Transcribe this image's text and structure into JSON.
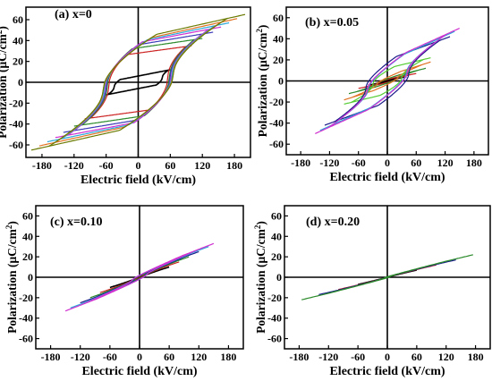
{
  "figure": {
    "panels": [
      {
        "key": "a",
        "title": "(a) x=0",
        "xlabel": "Electric field (kV/cm)",
        "ylabel_main": "Polarization (μC/cm",
        "ylabel_sup": "2",
        "ylabel_close": ")",
        "xticks": [
          -180,
          -120,
          -60,
          0,
          60,
          120,
          180
        ],
        "yticks": [
          -60,
          -40,
          -20,
          0,
          20,
          40,
          60
        ],
        "xlim": [
          -210,
          210
        ],
        "ylim": [
          -72,
          72
        ]
      },
      {
        "key": "b",
        "title": "(b) x=0.05",
        "xlabel": "Electric field (kV/cm)",
        "ylabel_main": "Polarization (μC/cm",
        "ylabel_sup": "2",
        "ylabel_close": ")",
        "xticks": [
          -180,
          -120,
          -60,
          0,
          60,
          120,
          180
        ],
        "yticks": [
          -60,
          -40,
          -20,
          0,
          20,
          40,
          60
        ],
        "xlim": [
          -210,
          210
        ],
        "ylim": [
          -70,
          70
        ]
      },
      {
        "key": "c",
        "title": "(c) x=0.10",
        "xlabel": "Electric field (kV/cm)",
        "ylabel_main": "Polarization (μC/cm",
        "ylabel_sup": "2",
        "ylabel_close": ")",
        "xticks": [
          -180,
          -120,
          -60,
          0,
          60,
          120,
          180
        ],
        "yticks": [
          -60,
          -40,
          -20,
          0,
          20,
          40,
          60
        ],
        "xlim": [
          -210,
          210
        ],
        "ylim": [
          -70,
          70
        ]
      },
      {
        "key": "d",
        "title": "(d) x=0.20",
        "xlabel": "Electric field (kV/cm)",
        "ylabel_main": "Polarization (μC/cm",
        "ylabel_sup": "2",
        "ylabel_close": ")",
        "xticks": [
          -180,
          -120,
          -60,
          0,
          60,
          120,
          180
        ],
        "yticks": [
          -60,
          -40,
          -20,
          0,
          20,
          40,
          60
        ],
        "xlim": [
          -210,
          210
        ],
        "ylim": [
          -70,
          70
        ]
      }
    ]
  },
  "chart_data": [
    {
      "type": "line",
      "title": "(a) x=0",
      "xlabel": "Electric field (kV/cm)",
      "ylabel": "Polarization (μC/cm2)",
      "xlim": [
        -210,
        210
      ],
      "ylim": [
        -72,
        72
      ],
      "grid": false,
      "loops": [
        {
          "emax": 60,
          "pmax": 12,
          "pr": 6,
          "ec": 45,
          "color": "#000000"
        },
        {
          "emax": 100,
          "pmax": 35,
          "pr": 28,
          "ec": 55,
          "color": "#cc2020"
        },
        {
          "emax": 120,
          "pmax": 42,
          "pr": 33,
          "ec": 58,
          "color": "#2a8a2a"
        },
        {
          "emax": 140,
          "pmax": 48,
          "pr": 36,
          "ec": 60,
          "color": "#3a3ab8"
        },
        {
          "emax": 155,
          "pmax": 53,
          "pr": 38,
          "ec": 62,
          "color": "#d030d0"
        },
        {
          "emax": 170,
          "pmax": 57,
          "pr": 39,
          "ec": 63,
          "color": "#2aa8d8"
        },
        {
          "emax": 185,
          "pmax": 61,
          "pr": 40,
          "ec": 65,
          "color": "#e07020"
        },
        {
          "emax": 200,
          "pmax": 65,
          "pr": 42,
          "ec": 66,
          "color": "#6a7a00"
        }
      ]
    },
    {
      "type": "line",
      "title": "(b) x=0.05",
      "xlabel": "Electric field (kV/cm)",
      "ylabel": "Polarization (μC/cm2)",
      "xlim": [
        -210,
        210
      ],
      "ylim": [
        -70,
        70
      ],
      "grid": false,
      "loops": [
        {
          "emax": 40,
          "pmax": 4,
          "pr": 1,
          "ec": 10,
          "color": "#000000"
        },
        {
          "emax": 60,
          "pmax": 7,
          "pr": 2,
          "ec": 15,
          "color": "#cc2020"
        },
        {
          "emax": 80,
          "pmax": 12,
          "pr": 3,
          "ec": 20,
          "color": "#2a8a2a"
        },
        {
          "emax": 90,
          "pmax": 18,
          "pr": 5,
          "ec": 22,
          "color": "#e07020"
        },
        {
          "emax": 90,
          "pmax": 22,
          "pr": 12,
          "ec": 30,
          "color": "#55cc33"
        },
        {
          "emax": 130,
          "pmax": 42,
          "pr": 20,
          "ec": 45,
          "color": "#1a1a8a"
        },
        {
          "emax": 140,
          "pmax": 47,
          "pr": 18,
          "ec": 40,
          "color": "#2aa8d8"
        },
        {
          "emax": 150,
          "pmax": 50,
          "pr": 19,
          "ec": 42,
          "color": "#d030d0"
        }
      ]
    },
    {
      "type": "line",
      "title": "(c) x=0.10",
      "xlabel": "Electric field (kV/cm)",
      "ylabel": "Polarization (μC/cm2)",
      "xlim": [
        -210,
        210
      ],
      "ylim": [
        -70,
        70
      ],
      "grid": false,
      "loops": [
        {
          "emax": 60,
          "pmax": 10,
          "pr": 1,
          "ec": 6,
          "color": "#000000"
        },
        {
          "emax": 80,
          "pmax": 15,
          "pr": 2,
          "ec": 8,
          "color": "#cc2020"
        },
        {
          "emax": 100,
          "pmax": 20,
          "pr": 3,
          "ec": 10,
          "color": "#2a8a2a"
        },
        {
          "emax": 120,
          "pmax": 25,
          "pr": 4,
          "ec": 12,
          "color": "#1a1a8a"
        },
        {
          "emax": 140,
          "pmax": 30,
          "pr": 5,
          "ec": 14,
          "color": "#2aa8d8"
        },
        {
          "emax": 150,
          "pmax": 33,
          "pr": 5,
          "ec": 15,
          "color": "#d030d0"
        }
      ]
    },
    {
      "type": "line",
      "title": "(d) x=0.20",
      "xlabel": "Electric field (kV/cm)",
      "ylabel": "Polarization (μC/cm2)",
      "xlim": [
        -210,
        210
      ],
      "ylim": [
        -70,
        70
      ],
      "grid": false,
      "loops": [
        {
          "emax": 60,
          "pmax": 7,
          "pr": 0.5,
          "ec": 3,
          "color": "#000000"
        },
        {
          "emax": 100,
          "pmax": 12,
          "pr": 1,
          "ec": 4,
          "color": "#cc2020"
        },
        {
          "emax": 140,
          "pmax": 17,
          "pr": 1.5,
          "ec": 5,
          "color": "#1a1a8a"
        },
        {
          "emax": 175,
          "pmax": 22,
          "pr": 2,
          "ec": 6,
          "color": "#2a8a2a"
        }
      ]
    }
  ]
}
